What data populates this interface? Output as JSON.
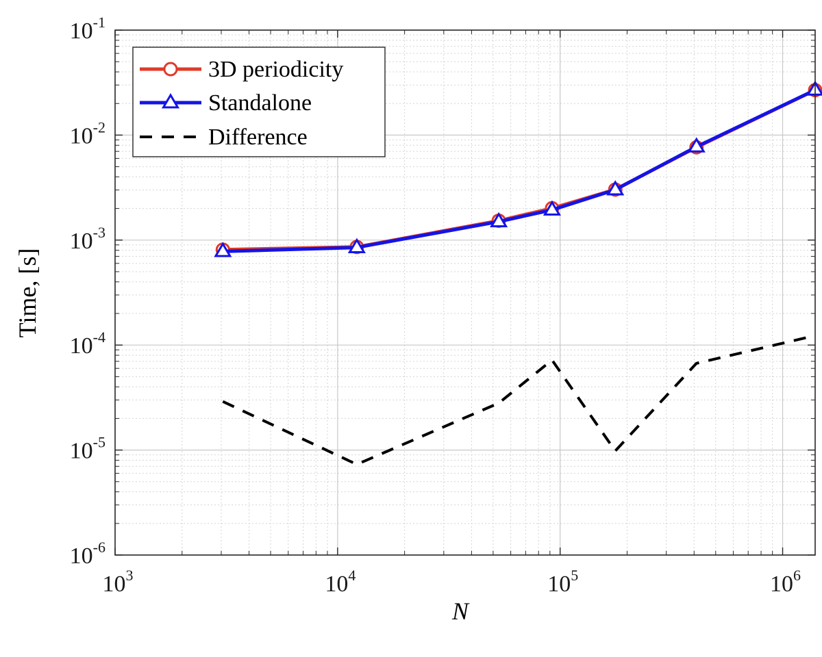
{
  "chart_data": {
    "type": "line",
    "xscale": "log",
    "yscale": "log",
    "xlim": [
      1000,
      1400000
    ],
    "ylim": [
      1e-06,
      0.1
    ],
    "xlabel": "N",
    "ylabel": "Time,  [s]",
    "grid": true,
    "minor_grid": true,
    "legend_position": "top-left",
    "x_ticks": [
      {
        "value": 1000,
        "base": "10",
        "exp": "3"
      },
      {
        "value": 10000,
        "base": "10",
        "exp": "4"
      },
      {
        "value": 100000,
        "base": "10",
        "exp": "5"
      },
      {
        "value": 1000000,
        "base": "10",
        "exp": "6"
      }
    ],
    "y_ticks": [
      {
        "value": 1e-06,
        "base": "10",
        "exp": "-6"
      },
      {
        "value": 1e-05,
        "base": "10",
        "exp": "-5"
      },
      {
        "value": 0.0001,
        "base": "10",
        "exp": "-4"
      },
      {
        "value": 0.001,
        "base": "10",
        "exp": "-3"
      },
      {
        "value": 0.01,
        "base": "10",
        "exp": "-2"
      },
      {
        "value": 0.1,
        "base": "10",
        "exp": "-1"
      }
    ],
    "series": [
      {
        "name": "3D periodicity",
        "color": "#e03a2a",
        "marker": "circle",
        "dash": "solid",
        "x": [
          3050,
          12200,
          53000,
          92000,
          177000,
          410000,
          1400000
        ],
        "y": [
          0.00081,
          0.00086,
          0.00153,
          0.00201,
          0.00303,
          0.00765,
          0.0268
        ]
      },
      {
        "name": "Standalone",
        "color": "#1414e6",
        "marker": "triangle",
        "dash": "solid",
        "x": [
          3050,
          12200,
          53000,
          92000,
          177000,
          410000,
          1400000
        ],
        "y": [
          0.00078,
          0.00085,
          0.0015,
          0.00194,
          0.00302,
          0.00775,
          0.0269
        ]
      },
      {
        "name": "Difference",
        "color": "#000000",
        "marker": "none",
        "dash": "dashed",
        "x": [
          3050,
          12200,
          53000,
          92000,
          177000,
          410000,
          1400000
        ],
        "y": [
          2.9e-05,
          7.3e-06,
          2.8e-05,
          7.2e-05,
          9.8e-06,
          6.7e-05,
          0.000123
        ]
      }
    ]
  }
}
